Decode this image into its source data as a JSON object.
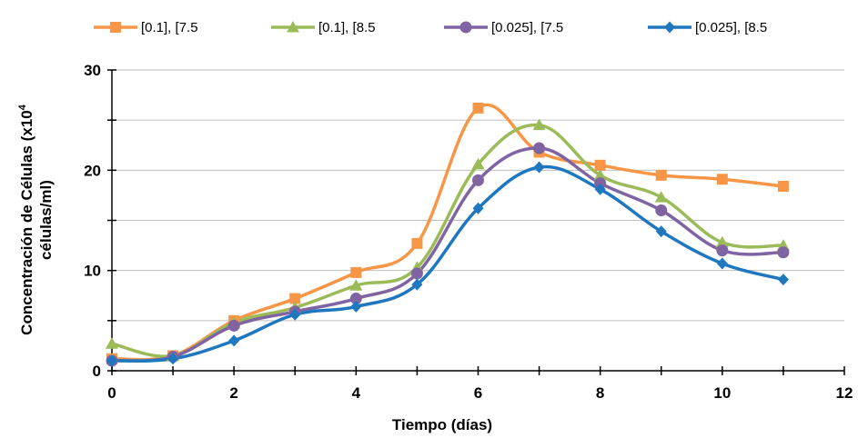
{
  "chart_data": {
    "type": "line",
    "xlabel": "Tiempo (días)",
    "ylabel_line1": "Concentración de Células (x10",
    "ylabel_sup": "4",
    "ylabel_line2": "células/ml)",
    "xlim": [
      0,
      12
    ],
    "ylim": [
      0,
      30
    ],
    "xticks": [
      0,
      2,
      4,
      6,
      8,
      10,
      12
    ],
    "yticks": [
      0,
      10,
      20,
      30
    ],
    "grid": "horizontal",
    "legend_position": "top",
    "x": [
      0,
      1,
      2,
      3,
      4,
      5,
      6,
      7,
      8,
      9,
      10,
      11
    ],
    "series": [
      {
        "name": "[0.1], [7.5",
        "color": "#F79646",
        "marker": "square",
        "values": [
          1.2,
          1.5,
          5.0,
          7.2,
          9.8,
          12.7,
          26.2,
          21.8,
          20.5,
          19.5,
          19.1,
          18.4
        ]
      },
      {
        "name": "[0.1], [8.5",
        "color": "#9BBB59",
        "marker": "triangle",
        "values": [
          2.7,
          1.5,
          4.8,
          6.3,
          8.5,
          10.3,
          20.6,
          24.5,
          19.5,
          17.3,
          12.8,
          12.5
        ]
      },
      {
        "name": "[0.025], [7.5",
        "color": "#8064A2",
        "marker": "circle",
        "values": [
          1.0,
          1.4,
          4.5,
          5.9,
          7.2,
          9.7,
          19.0,
          22.2,
          18.7,
          16.0,
          12.0,
          11.8
        ]
      },
      {
        "name": "[0.025], [8.5",
        "color": "#1F77C0",
        "marker": "diamond",
        "values": [
          1.0,
          1.2,
          3.0,
          5.6,
          6.4,
          8.6,
          16.2,
          20.3,
          18.1,
          13.9,
          10.7,
          9.1
        ]
      }
    ]
  }
}
